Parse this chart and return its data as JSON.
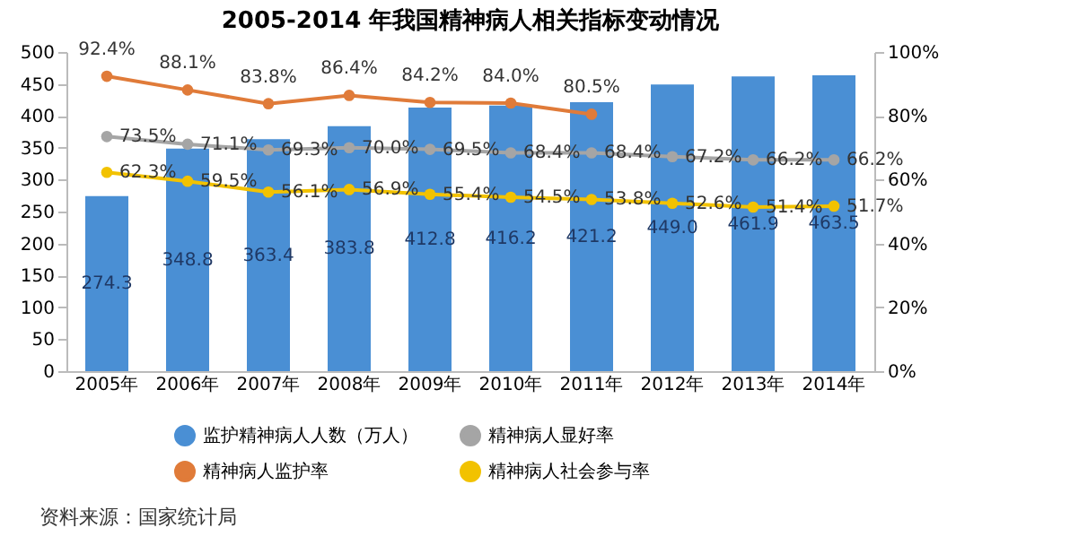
{
  "chart_data": {
    "type": "bar",
    "title": "2005-2014 年我国精神病人相关指标变动情况",
    "categories": [
      "2005年",
      "2006年",
      "2007年",
      "2008年",
      "2009年",
      "2010年",
      "2011年",
      "2012年",
      "2013年",
      "2014年"
    ],
    "series": [
      {
        "name": "监护精神病人人数（万人）",
        "color": "#4a8fd4",
        "values": [
          274.3,
          348.8,
          363.4,
          383.8,
          412.8,
          416.2,
          421.2,
          449.0,
          461.9,
          463.5
        ],
        "value_labels": [
          "274.3",
          "348.8",
          "363.4",
          "383.8",
          "412.8",
          "416.2",
          "421.2",
          "449.0",
          "461.9",
          "463.5"
        ]
      },
      {
        "name": "精神病人监护率",
        "type": "line",
        "axis": "y2",
        "color": "#e07b39",
        "values": [
          92.4,
          88.1,
          83.8,
          86.4,
          84.2,
          84.0,
          80.5,
          null,
          null,
          null
        ],
        "value_labels": [
          "92.4%",
          "88.1%",
          "83.8%",
          "86.4%",
          "84.2%",
          "84.0%",
          "80.5%",
          null,
          null,
          null
        ]
      },
      {
        "name": "精神病人显好率",
        "type": "line",
        "axis": "y2",
        "color": "#a5a5a5",
        "values": [
          73.5,
          71.1,
          69.3,
          70.0,
          69.5,
          68.4,
          68.4,
          67.2,
          66.2,
          66.2
        ],
        "value_labels": [
          "73.5%",
          "71.1%",
          "69.3%",
          "70.0%",
          "69.5%",
          "68.4%",
          "68.4%",
          "67.2%",
          "66.2%",
          "66.2%"
        ]
      },
      {
        "name": "精神病人社会参与率",
        "type": "line",
        "axis": "y2",
        "color": "#f2c200",
        "values": [
          62.3,
          59.5,
          56.1,
          56.9,
          55.4,
          54.5,
          53.8,
          52.6,
          51.4,
          51.7
        ],
        "value_labels": [
          "62.3%",
          "59.5%",
          "56.1%",
          "56.9%",
          "55.4%",
          "54.5%",
          "53.8%",
          "52.6%",
          "51.4%",
          "51.7%"
        ]
      }
    ],
    "ylim": [
      0,
      500
    ],
    "yticks": [
      0,
      50,
      100,
      150,
      200,
      250,
      300,
      350,
      400,
      450,
      500
    ],
    "y2lim": [
      0,
      100
    ],
    "y2ticks": [
      {
        "value": 0,
        "label": "0%"
      },
      {
        "value": 20,
        "label": "20%"
      },
      {
        "value": 40,
        "label": "40%"
      },
      {
        "value": 60,
        "label": "60%"
      },
      {
        "value": 80,
        "label": "80%"
      },
      {
        "value": 100,
        "label": "100%"
      }
    ],
    "marker": "circle",
    "legend": "bottom",
    "grid": false,
    "annotations": [
      "资料来源：国家统计局"
    ]
  }
}
